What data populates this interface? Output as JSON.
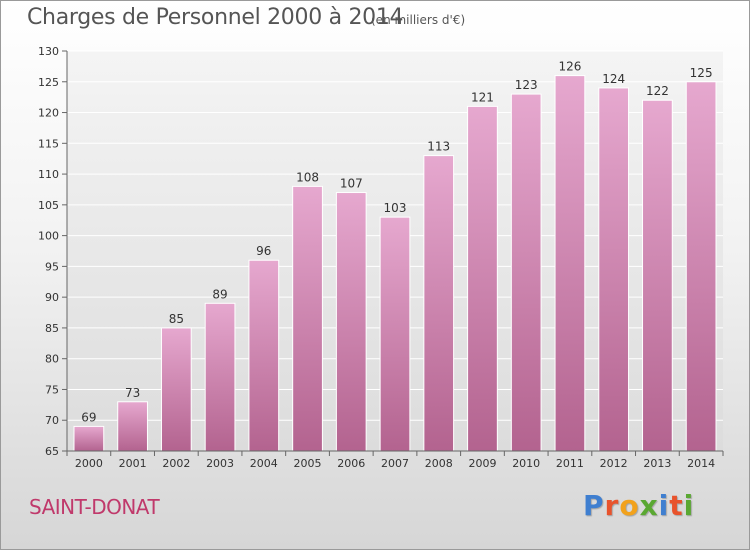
{
  "chart_data": {
    "type": "bar",
    "title": "Charges de Personnel 2000 à 2014",
    "subtitle": "(en milliers d'€)",
    "categories": [
      "2000",
      "2001",
      "2002",
      "2003",
      "2004",
      "2005",
      "2006",
      "2007",
      "2008",
      "2009",
      "2010",
      "2011",
      "2012",
      "2013",
      "2014"
    ],
    "values": [
      69,
      73,
      85,
      89,
      96,
      108,
      107,
      103,
      113,
      121,
      123,
      126,
      124,
      122,
      125
    ],
    "ylim": [
      65,
      130
    ],
    "yticks": [
      65,
      70,
      75,
      80,
      85,
      90,
      95,
      100,
      105,
      110,
      115,
      120,
      125,
      130
    ],
    "grid": true,
    "xlabel": "",
    "ylabel": ""
  },
  "footer": {
    "commune": "SAINT-DONAT",
    "brand_letters": [
      "P",
      "r",
      "o",
      "x",
      "i",
      "t",
      "i"
    ]
  },
  "colors": {
    "bar_top": "#e6a8cf",
    "bar_bottom": "#b3638f",
    "commune": "#c0396b",
    "brand": [
      "#3f7fd0",
      "#e8532c",
      "#f2a21c",
      "#5aa832",
      "#3f7fd0",
      "#e8532c",
      "#5aa832"
    ]
  }
}
